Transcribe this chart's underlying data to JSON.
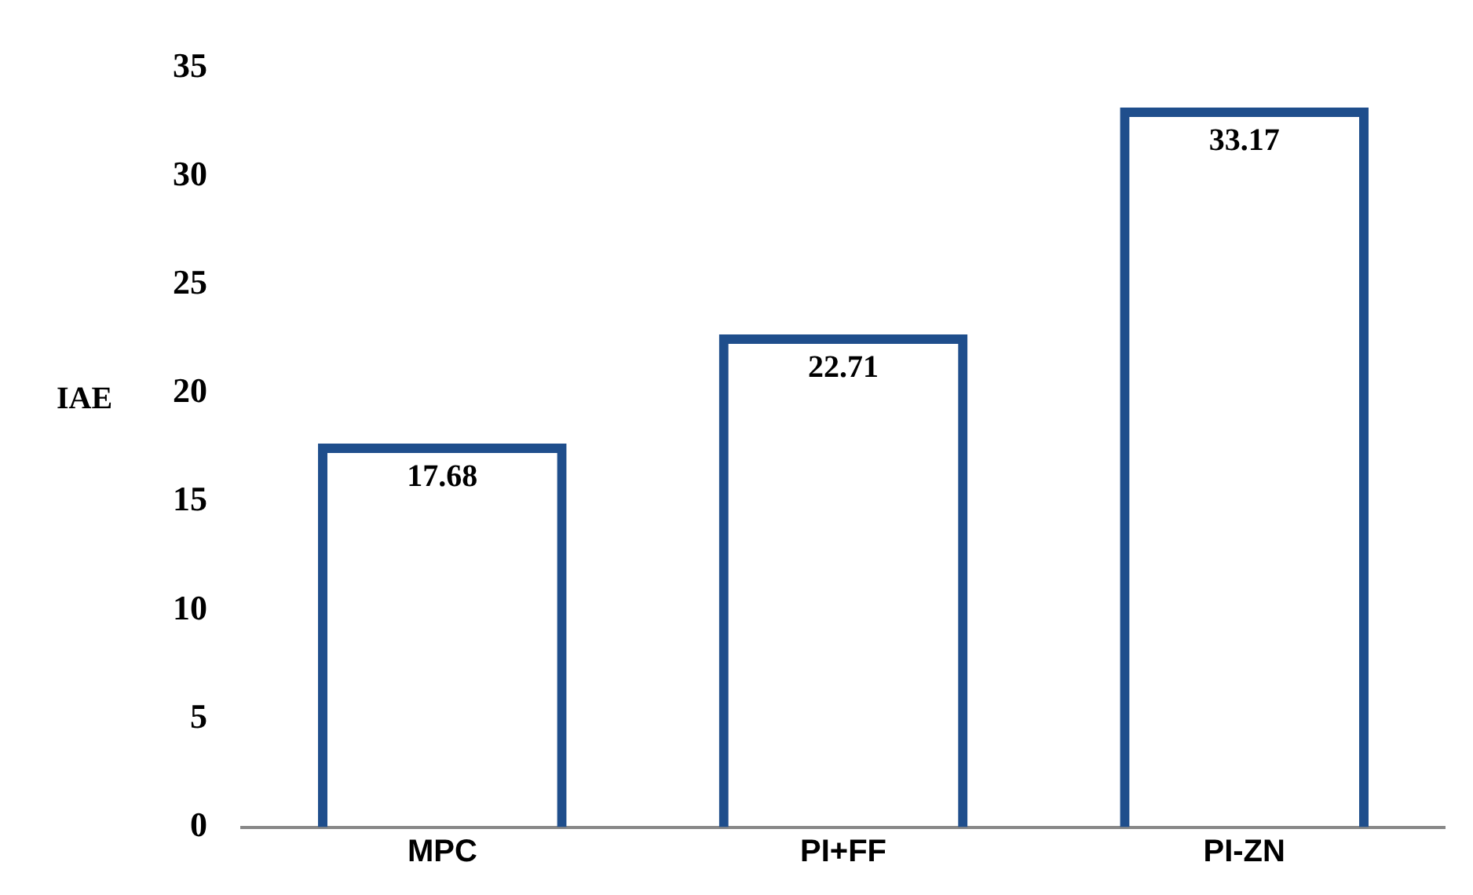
{
  "chart_data": {
    "type": "bar",
    "ylabel": "IAE",
    "categories": [
      "MPC",
      "PI+FF",
      "PI-ZN"
    ],
    "values": [
      17.68,
      22.71,
      33.17
    ],
    "color": "#1f4e8c",
    "ylim": [
      0,
      35
    ],
    "yticks": [
      0,
      5,
      10,
      15,
      20,
      25,
      30,
      35
    ],
    "data_labels": true
  }
}
